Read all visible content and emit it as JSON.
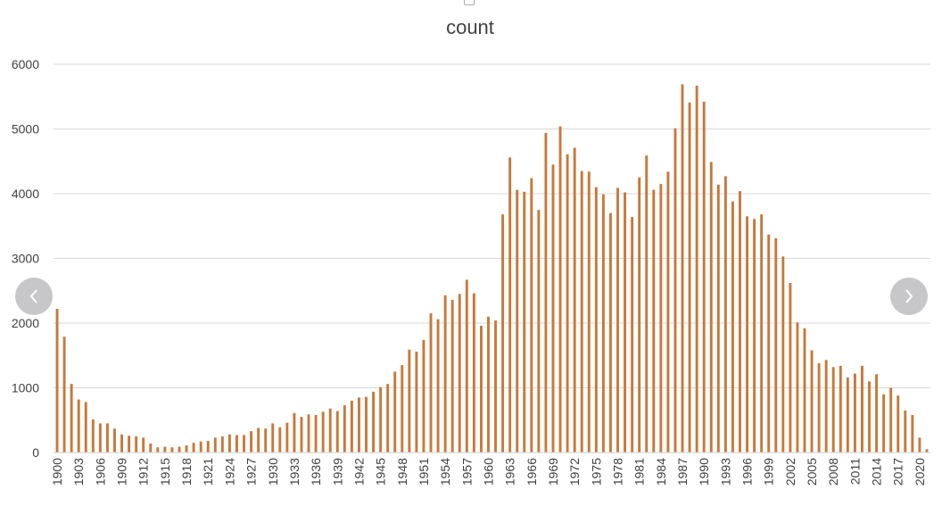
{
  "chart_data": {
    "type": "bar",
    "title": "count",
    "xlabel": "",
    "ylabel": "",
    "ylim": [
      0,
      6000
    ],
    "yticks": [
      0,
      1000,
      2000,
      3000,
      4000,
      5000,
      6000
    ],
    "grid": true,
    "bar_color": "#c8783a",
    "grid_color": "#d9d9d9",
    "categories": [
      1900,
      1901,
      1902,
      1903,
      1904,
      1905,
      1906,
      1907,
      1908,
      1909,
      1910,
      1911,
      1912,
      1913,
      1914,
      1915,
      1916,
      1917,
      1918,
      1919,
      1920,
      1921,
      1922,
      1923,
      1924,
      1925,
      1926,
      1927,
      1928,
      1929,
      1930,
      1931,
      1932,
      1933,
      1934,
      1935,
      1936,
      1937,
      1938,
      1939,
      1940,
      1941,
      1942,
      1943,
      1944,
      1945,
      1946,
      1947,
      1948,
      1949,
      1950,
      1951,
      1952,
      1953,
      1954,
      1955,
      1956,
      1957,
      1958,
      1959,
      1960,
      1961,
      1962,
      1963,
      1964,
      1965,
      1966,
      1967,
      1968,
      1969,
      1970,
      1971,
      1972,
      1973,
      1974,
      1975,
      1976,
      1977,
      1978,
      1979,
      1980,
      1981,
      1982,
      1983,
      1984,
      1985,
      1986,
      1987,
      1988,
      1989,
      1990,
      1991,
      1992,
      1993,
      1994,
      1995,
      1996,
      1997,
      1998,
      1999,
      2000,
      2001,
      2002,
      2003,
      2004,
      2005,
      2006,
      2007,
      2008,
      2009,
      2010,
      2011,
      2012,
      2013,
      2014,
      2015,
      2016,
      2017,
      2018,
      2019,
      2020,
      2021
    ],
    "tick_labels": [
      "1900",
      "1903",
      "1906",
      "1909",
      "1912",
      "1915",
      "1918",
      "1921",
      "1924",
      "1927",
      "1930",
      "1933",
      "1936",
      "1939",
      "1942",
      "1945",
      "1948",
      "1951",
      "1954",
      "1957",
      "1960",
      "1963",
      "1966",
      "1969",
      "1972",
      "1975",
      "1978",
      "1981",
      "1984",
      "1987",
      "1990",
      "1993",
      "1996",
      "1999",
      "2002",
      "2005",
      "2008",
      "2011",
      "2014",
      "2017",
      "2020"
    ],
    "values": [
      2220,
      1790,
      1060,
      820,
      780,
      510,
      450,
      450,
      370,
      280,
      260,
      250,
      230,
      140,
      80,
      90,
      80,
      90,
      110,
      150,
      170,
      180,
      230,
      250,
      280,
      270,
      270,
      330,
      380,
      370,
      450,
      390,
      460,
      610,
      550,
      590,
      580,
      630,
      680,
      640,
      730,
      800,
      850,
      860,
      940,
      1010,
      1060,
      1250,
      1350,
      1590,
      1560,
      1740,
      2150,
      2060,
      2430,
      2360,
      2450,
      2670,
      2460,
      1960,
      2100,
      2040,
      3680,
      4560,
      4060,
      4030,
      4240,
      3750,
      4940,
      4450,
      5040,
      4610,
      4710,
      4350,
      4340,
      4100,
      3990,
      3700,
      4090,
      4020,
      3640,
      4250,
      4590,
      4060,
      4150,
      4340,
      5010,
      5690,
      5410,
      5670,
      5420,
      4490,
      4140,
      4270,
      3880,
      4040,
      3650,
      3610,
      3680,
      3370,
      3310,
      3030,
      2620,
      2010,
      1920,
      1580,
      1380,
      1430,
      1320,
      1340,
      1160,
      1220,
      1340,
      1100,
      1210,
      900,
      1000,
      880,
      650,
      580,
      230,
      50
    ]
  },
  "nav": {
    "prev_icon": "chevron-left-icon",
    "next_icon": "chevron-right-icon"
  }
}
